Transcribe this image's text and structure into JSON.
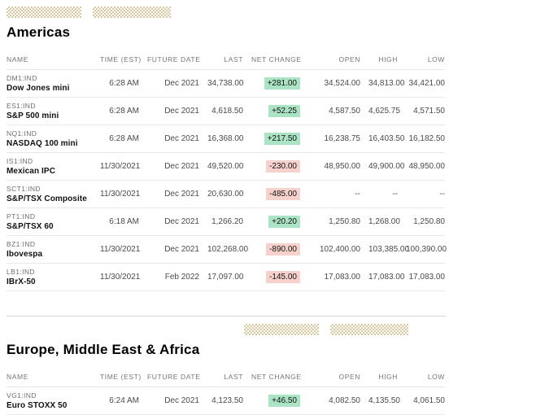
{
  "page": {
    "sections": [
      {
        "title": "Americas",
        "columns": [
          "NAME",
          "TIME (EST)",
          "FUTURE DATE",
          "LAST",
          "NET CHANGE",
          "OPEN",
          "HIGH",
          "LOW"
        ],
        "rows": [
          {
            "ticker": "DM1:IND",
            "name": "Dow Jones mini",
            "time": "6:28 AM",
            "future_date": "Dec 2021",
            "last": "34,738.00",
            "net_change": "+281.00",
            "direction": "up",
            "open": "34,524.00",
            "high": "34,813.00",
            "low": "34,421.00"
          },
          {
            "ticker": "ES1:IND",
            "name": "S&P 500 mini",
            "time": "6:28 AM",
            "future_date": "Dec 2021",
            "last": "4,618.50",
            "net_change": "+52.25",
            "direction": "up",
            "open": "4,587.50",
            "high": "4,625.75",
            "low": "4,571.50"
          },
          {
            "ticker": "NQ1:IND",
            "name": "NASDAQ 100 mini",
            "time": "6:28 AM",
            "future_date": "Dec 2021",
            "last": "16,368.00",
            "net_change": "+217.50",
            "direction": "up",
            "open": "16,238.75",
            "high": "16,403.50",
            "low": "16,182.50"
          },
          {
            "ticker": "IS1:IND",
            "name": "Mexican IPC",
            "time": "11/30/2021",
            "future_date": "Dec 2021",
            "last": "49,520.00",
            "net_change": "-230.00",
            "direction": "down",
            "open": "48,950.00",
            "high": "49,900.00",
            "low": "48,950.00"
          },
          {
            "ticker": "SCT1:IND",
            "name": "S&P/TSX Composite",
            "time": "11/30/2021",
            "future_date": "Dec 2021",
            "last": "20,630.00",
            "net_change": "-485.00",
            "direction": "down",
            "open": "--",
            "high": "--",
            "low": "--"
          },
          {
            "ticker": "PT1:IND",
            "name": "S&P/TSX 60",
            "time": "6:18 AM",
            "future_date": "Dec 2021",
            "last": "1,266.20",
            "net_change": "+20.20",
            "direction": "up",
            "open": "1,250.80",
            "high": "1,268.00",
            "low": "1,250.80"
          },
          {
            "ticker": "BZ1:IND",
            "name": "Ibovespa",
            "time": "11/30/2021",
            "future_date": "Dec 2021",
            "last": "102,268.00",
            "net_change": "-890.00",
            "direction": "down",
            "open": "102,400.00",
            "high": "103,385.00",
            "low": "100,390.00"
          },
          {
            "ticker": "LB1:IND",
            "name": "IBrX-50",
            "time": "11/30/2021",
            "future_date": "Feb 2022",
            "last": "17,097.00",
            "net_change": "-145.00",
            "direction": "down",
            "open": "17,083.00",
            "high": "17,083.00",
            "low": "17,083.00"
          }
        ]
      },
      {
        "title": "Europe, Middle East & Africa",
        "columns": [
          "NAME",
          "TIME (EST)",
          "FUTURE DATE",
          "LAST",
          "NET CHANGE",
          "OPEN",
          "HIGH",
          "LOW"
        ],
        "rows": [
          {
            "ticker": "VG1:IND",
            "name": "Euro STOXX 50",
            "time": "6:24 AM",
            "future_date": "Dec 2021",
            "last": "4,123.50",
            "net_change": "+46.50",
            "direction": "up",
            "open": "4,082.50",
            "high": "4,135.50",
            "low": "4,061.50"
          }
        ]
      }
    ]
  },
  "colors": {
    "positive_badge_bg": "#abe3c5",
    "negative_badge_bg": "#f7d2cd",
    "pattern_tan": "#d8c9a0",
    "header_text": "#767676"
  }
}
